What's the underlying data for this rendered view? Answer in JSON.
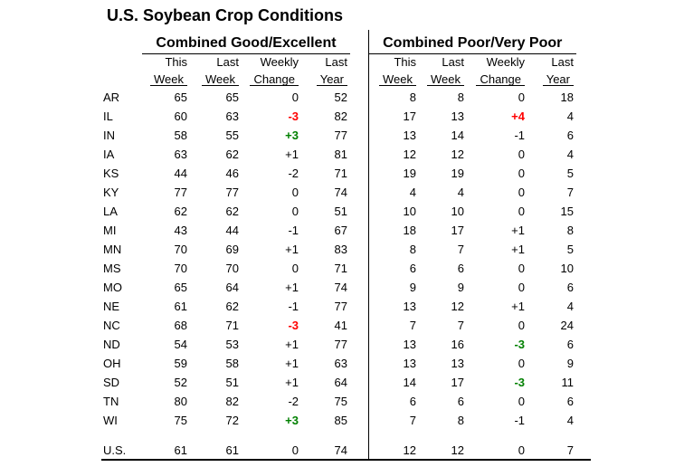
{
  "title": "U.S. Soybean Crop Conditions",
  "sections": [
    {
      "label": "Combined Good/Excellent"
    },
    {
      "label": "Combined Poor/Very Poor"
    }
  ],
  "columns": {
    "line1": [
      "This",
      "Last",
      "Weekly",
      "Last"
    ],
    "line2": [
      "Week",
      "Week",
      "Change",
      "Year"
    ]
  },
  "colors": {
    "text": "#000000",
    "change_bad_red": "#ff0000",
    "change_good_green": "#008000"
  },
  "chart_data": {
    "type": "table",
    "title": "U.S. Soybean Crop Conditions",
    "section_labels": [
      "Combined Good/Excellent",
      "Combined Poor/Very Poor"
    ],
    "column_labels": [
      "This Week",
      "Last Week",
      "Weekly Change",
      "Last Year"
    ],
    "rows": [
      {
        "state": "AR",
        "good": {
          "this": "65",
          "last": "65",
          "change": "0",
          "change_color": null,
          "year": "52"
        },
        "poor": {
          "this": "8",
          "last": "8",
          "change": "0",
          "change_color": null,
          "year": "18"
        }
      },
      {
        "state": "IL",
        "good": {
          "this": "60",
          "last": "63",
          "change": "-3",
          "change_color": "red",
          "year": "82"
        },
        "poor": {
          "this": "17",
          "last": "13",
          "change": "+4",
          "change_color": "red",
          "year": "4"
        }
      },
      {
        "state": "IN",
        "good": {
          "this": "58",
          "last": "55",
          "change": "+3",
          "change_color": "green",
          "year": "77"
        },
        "poor": {
          "this": "13",
          "last": "14",
          "change": "-1",
          "change_color": null,
          "year": "6"
        }
      },
      {
        "state": "IA",
        "good": {
          "this": "63",
          "last": "62",
          "change": "+1",
          "change_color": null,
          "year": "81"
        },
        "poor": {
          "this": "12",
          "last": "12",
          "change": "0",
          "change_color": null,
          "year": "4"
        }
      },
      {
        "state": "KS",
        "good": {
          "this": "44",
          "last": "46",
          "change": "-2",
          "change_color": null,
          "year": "71"
        },
        "poor": {
          "this": "19",
          "last": "19",
          "change": "0",
          "change_color": null,
          "year": "5"
        }
      },
      {
        "state": "KY",
        "good": {
          "this": "77",
          "last": "77",
          "change": "0",
          "change_color": null,
          "year": "74"
        },
        "poor": {
          "this": "4",
          "last": "4",
          "change": "0",
          "change_color": null,
          "year": "7"
        }
      },
      {
        "state": "LA",
        "good": {
          "this": "62",
          "last": "62",
          "change": "0",
          "change_color": null,
          "year": "51"
        },
        "poor": {
          "this": "10",
          "last": "10",
          "change": "0",
          "change_color": null,
          "year": "15"
        }
      },
      {
        "state": "MI",
        "good": {
          "this": "43",
          "last": "44",
          "change": "-1",
          "change_color": null,
          "year": "67"
        },
        "poor": {
          "this": "18",
          "last": "17",
          "change": "+1",
          "change_color": null,
          "year": "8"
        }
      },
      {
        "state": "MN",
        "good": {
          "this": "70",
          "last": "69",
          "change": "+1",
          "change_color": null,
          "year": "83"
        },
        "poor": {
          "this": "8",
          "last": "7",
          "change": "+1",
          "change_color": null,
          "year": "5"
        }
      },
      {
        "state": "MS",
        "good": {
          "this": "70",
          "last": "70",
          "change": "0",
          "change_color": null,
          "year": "71"
        },
        "poor": {
          "this": "6",
          "last": "6",
          "change": "0",
          "change_color": null,
          "year": "10"
        }
      },
      {
        "state": "MO",
        "good": {
          "this": "65",
          "last": "64",
          "change": "+1",
          "change_color": null,
          "year": "74"
        },
        "poor": {
          "this": "9",
          "last": "9",
          "change": "0",
          "change_color": null,
          "year": "6"
        }
      },
      {
        "state": "NE",
        "good": {
          "this": "61",
          "last": "62",
          "change": "-1",
          "change_color": null,
          "year": "77"
        },
        "poor": {
          "this": "13",
          "last": "12",
          "change": "+1",
          "change_color": null,
          "year": "4"
        }
      },
      {
        "state": "NC",
        "good": {
          "this": "68",
          "last": "71",
          "change": "-3",
          "change_color": "red",
          "year": "41"
        },
        "poor": {
          "this": "7",
          "last": "7",
          "change": "0",
          "change_color": null,
          "year": "24"
        }
      },
      {
        "state": "ND",
        "good": {
          "this": "54",
          "last": "53",
          "change": "+1",
          "change_color": null,
          "year": "77"
        },
        "poor": {
          "this": "13",
          "last": "16",
          "change": "-3",
          "change_color": "green",
          "year": "6"
        }
      },
      {
        "state": "OH",
        "good": {
          "this": "59",
          "last": "58",
          "change": "+1",
          "change_color": null,
          "year": "63"
        },
        "poor": {
          "this": "13",
          "last": "13",
          "change": "0",
          "change_color": null,
          "year": "9"
        }
      },
      {
        "state": "SD",
        "good": {
          "this": "52",
          "last": "51",
          "change": "+1",
          "change_color": null,
          "year": "64"
        },
        "poor": {
          "this": "14",
          "last": "17",
          "change": "-3",
          "change_color": "green",
          "year": "11"
        }
      },
      {
        "state": "TN",
        "good": {
          "this": "80",
          "last": "82",
          "change": "-2",
          "change_color": null,
          "year": "75"
        },
        "poor": {
          "this": "6",
          "last": "6",
          "change": "0",
          "change_color": null,
          "year": "6"
        }
      },
      {
        "state": "WI",
        "good": {
          "this": "75",
          "last": "72",
          "change": "+3",
          "change_color": "green",
          "year": "85"
        },
        "poor": {
          "this": "7",
          "last": "8",
          "change": "-1",
          "change_color": null,
          "year": "4"
        }
      }
    ],
    "total": {
      "state": "U.S.",
      "good": {
        "this": "61",
        "last": "61",
        "change": "0",
        "change_color": null,
        "year": "74"
      },
      "poor": {
        "this": "12",
        "last": "12",
        "change": "0",
        "change_color": null,
        "year": "7"
      }
    }
  }
}
